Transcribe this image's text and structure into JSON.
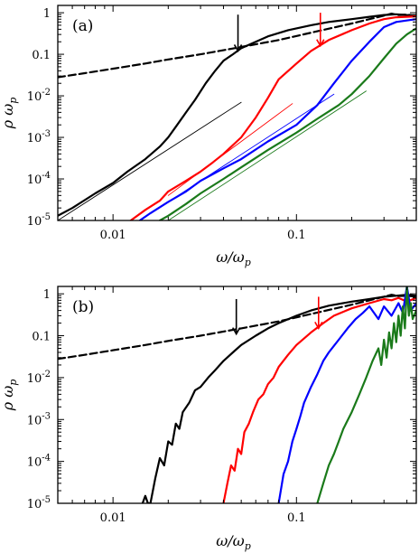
{
  "chart_data": [
    {
      "type": "line",
      "panel_label": "(a)",
      "xlabel": "ω/ω",
      "xlabel_sub": "p",
      "ylabel": "ρ ω",
      "ylabel_sub": "p",
      "xscale": "log",
      "yscale": "log",
      "xlim": [
        0.005,
        0.45
      ],
      "ylim": [
        1e-05,
        1.5
      ],
      "xticks": [
        {
          "value": 0.01,
          "label": "0.01"
        },
        {
          "value": 0.1,
          "label": "0.1"
        }
      ],
      "yticks": [
        {
          "value": 1,
          "base": "1",
          "exp": ""
        },
        {
          "value": 0.1,
          "base": "0.1",
          "exp": ""
        },
        {
          "value": 0.01,
          "base": "10",
          "exp": "-2"
        },
        {
          "value": 0.001,
          "base": "10",
          "exp": "-3"
        },
        {
          "value": 0.0001,
          "base": "10",
          "exp": "-4"
        },
        {
          "value": 1e-05,
          "base": "10",
          "exp": "-5"
        }
      ],
      "series": [
        {
          "color": "#000000",
          "dash": true,
          "width": 2.2,
          "x": [
            0.005,
            0.007,
            0.01,
            0.015,
            0.02,
            0.03,
            0.05,
            0.08,
            0.12,
            0.2,
            0.3,
            0.33,
            0.36,
            0.4,
            0.45
          ],
          "y": [
            0.028,
            0.035,
            0.045,
            0.06,
            0.075,
            0.1,
            0.15,
            0.22,
            0.33,
            0.55,
            0.85,
            0.95,
            0.88,
            0.9,
            0.85
          ]
        },
        {
          "color": "#000000",
          "dash": false,
          "width": 2.2,
          "x": [
            0.005,
            0.006,
            0.008,
            0.01,
            0.012,
            0.015,
            0.018,
            0.02,
            0.022,
            0.025,
            0.028,
            0.032,
            0.036,
            0.04,
            0.045,
            0.05,
            0.06,
            0.07,
            0.09,
            0.12,
            0.15,
            0.2,
            0.25,
            0.3,
            0.35,
            0.45
          ],
          "y": [
            1.3e-05,
            2e-05,
            4.5e-05,
            8e-05,
            0.00015,
            0.0003,
            0.0006,
            0.001,
            0.0018,
            0.004,
            0.008,
            0.02,
            0.04,
            0.07,
            0.1,
            0.14,
            0.2,
            0.27,
            0.38,
            0.5,
            0.6,
            0.7,
            0.8,
            0.88,
            0.92,
            0.85
          ]
        },
        {
          "color": "#ff0000",
          "dash": false,
          "width": 2.2,
          "x": [
            0.0125,
            0.015,
            0.018,
            0.02,
            0.025,
            0.03,
            0.035,
            0.04,
            0.05,
            0.06,
            0.07,
            0.08,
            0.1,
            0.12,
            0.15,
            0.2,
            0.25,
            0.3,
            0.35,
            0.45
          ],
          "y": [
            1e-05,
            1.8e-05,
            3e-05,
            5e-05,
            9e-05,
            0.00015,
            0.00025,
            0.0004,
            0.001,
            0.003,
            0.009,
            0.025,
            0.06,
            0.12,
            0.22,
            0.38,
            0.55,
            0.7,
            0.78,
            0.82
          ]
        },
        {
          "color": "#0000ff",
          "dash": false,
          "width": 2.2,
          "x": [
            0.014,
            0.016,
            0.02,
            0.025,
            0.03,
            0.04,
            0.05,
            0.07,
            0.1,
            0.13,
            0.16,
            0.2,
            0.25,
            0.3,
            0.35,
            0.45
          ],
          "y": [
            1e-05,
            1.5e-05,
            2.8e-05,
            5e-05,
            9e-05,
            0.00018,
            0.0003,
            0.0008,
            0.002,
            0.006,
            0.02,
            0.07,
            0.2,
            0.45,
            0.6,
            0.7
          ]
        },
        {
          "color": "#1a7a1a",
          "dash": false,
          "width": 2.2,
          "x": [
            0.018,
            0.02,
            0.025,
            0.03,
            0.04,
            0.05,
            0.07,
            0.1,
            0.13,
            0.17,
            0.2,
            0.25,
            0.3,
            0.35,
            0.4,
            0.45
          ],
          "y": [
            1e-05,
            1.3e-05,
            2.5e-05,
            4.5e-05,
            0.0001,
            0.00019,
            0.0005,
            0.0013,
            0.0028,
            0.006,
            0.011,
            0.03,
            0.08,
            0.18,
            0.3,
            0.42
          ]
        },
        {
          "color": "#000000",
          "dash": false,
          "width": 0.9,
          "x": [
            0.005,
            0.05
          ],
          "y": [
            1e-05,
            0.007
          ]
        },
        {
          "color": "#ff0000",
          "dash": false,
          "width": 0.9,
          "x": [
            0.02,
            0.095
          ],
          "y": [
            4e-05,
            0.0065
          ]
        },
        {
          "color": "#0000ff",
          "dash": false,
          "width": 0.9,
          "x": [
            0.014,
            0.16
          ],
          "y": [
            1e-05,
            0.011
          ]
        },
        {
          "color": "#1a7a1a",
          "dash": false,
          "width": 0.9,
          "x": [
            0.02,
            0.24
          ],
          "y": [
            1e-05,
            0.013
          ]
        }
      ],
      "arrows": [
        {
          "color": "#000000",
          "x": 0.048,
          "y_from": 0.9,
          "y_to": 0.12
        },
        {
          "color": "#ff0000",
          "x": 0.135,
          "y_from": 1.0,
          "y_to": 0.16
        }
      ]
    },
    {
      "type": "line",
      "panel_label": "(b)",
      "xlabel": "ω/ω",
      "xlabel_sub": "p",
      "ylabel": "ρ ω",
      "ylabel_sub": "p",
      "xscale": "log",
      "yscale": "log",
      "xlim": [
        0.005,
        0.45
      ],
      "ylim": [
        1e-05,
        1.5
      ],
      "xticks": [
        {
          "value": 0.01,
          "label": "0.01"
        },
        {
          "value": 0.1,
          "label": "0.1"
        }
      ],
      "yticks": [
        {
          "value": 1,
          "base": "1",
          "exp": ""
        },
        {
          "value": 0.1,
          "base": "0.1",
          "exp": ""
        },
        {
          "value": 0.01,
          "base": "10",
          "exp": "-2"
        },
        {
          "value": 0.001,
          "base": "10",
          "exp": "-3"
        },
        {
          "value": 0.0001,
          "base": "10",
          "exp": "-4"
        },
        {
          "value": 1e-05,
          "base": "10",
          "exp": "-5"
        }
      ],
      "series": [
        {
          "color": "#000000",
          "dash": true,
          "width": 2.2,
          "x": [
            0.005,
            0.007,
            0.01,
            0.015,
            0.02,
            0.03,
            0.05,
            0.08,
            0.12,
            0.2,
            0.3,
            0.33,
            0.36,
            0.4,
            0.45
          ],
          "y": [
            0.028,
            0.035,
            0.045,
            0.06,
            0.075,
            0.1,
            0.15,
            0.22,
            0.33,
            0.55,
            0.85,
            0.95,
            0.88,
            0.9,
            0.85
          ]
        },
        {
          "color": "#000000",
          "dash": false,
          "width": 2.2,
          "x": [
            0.0145,
            0.015,
            0.0155,
            0.016,
            0.017,
            0.018,
            0.019,
            0.02,
            0.021,
            0.022,
            0.023,
            0.024,
            0.026,
            0.028,
            0.03,
            0.033,
            0.036,
            0.04,
            0.045,
            0.05,
            0.06,
            0.07,
            0.08,
            0.1,
            0.12,
            0.15,
            0.2,
            0.25,
            0.3,
            0.35,
            0.4,
            0.45
          ],
          "y": [
            1e-05,
            1.5e-05,
            1e-05,
            1e-05,
            4e-05,
            0.00012,
            8e-05,
            0.0003,
            0.00025,
            0.0008,
            0.0006,
            0.0015,
            0.0025,
            0.005,
            0.006,
            0.01,
            0.015,
            0.025,
            0.04,
            0.06,
            0.1,
            0.15,
            0.2,
            0.3,
            0.4,
            0.52,
            0.65,
            0.75,
            0.85,
            0.9,
            0.95,
            0.9
          ]
        },
        {
          "color": "#ff0000",
          "dash": false,
          "width": 2.2,
          "x": [
            0.04,
            0.042,
            0.044,
            0.046,
            0.048,
            0.05,
            0.052,
            0.055,
            0.058,
            0.062,
            0.066,
            0.07,
            0.075,
            0.08,
            0.09,
            0.1,
            0.12,
            0.14,
            0.16,
            0.2,
            0.25,
            0.3,
            0.33,
            0.36,
            0.4,
            0.45
          ],
          "y": [
            1e-05,
            3e-05,
            8e-05,
            6e-05,
            0.0002,
            0.00015,
            0.0005,
            0.0008,
            0.0015,
            0.003,
            0.004,
            0.007,
            0.01,
            0.018,
            0.035,
            0.06,
            0.12,
            0.2,
            0.3,
            0.45,
            0.6,
            0.75,
            0.7,
            0.8,
            0.65,
            0.8
          ]
        },
        {
          "color": "#0000ff",
          "dash": false,
          "width": 2.2,
          "x": [
            0.08,
            0.085,
            0.09,
            0.095,
            0.1,
            0.105,
            0.11,
            0.12,
            0.13,
            0.14,
            0.15,
            0.17,
            0.19,
            0.21,
            0.23,
            0.25,
            0.28,
            0.3,
            0.33,
            0.36,
            0.38,
            0.4,
            0.42,
            0.45
          ],
          "y": [
            1e-05,
            5e-05,
            0.0001,
            0.0003,
            0.0006,
            0.0012,
            0.0025,
            0.006,
            0.012,
            0.025,
            0.04,
            0.08,
            0.15,
            0.25,
            0.35,
            0.5,
            0.25,
            0.5,
            0.3,
            0.6,
            0.35,
            1.5,
            0.4,
            0.6
          ]
        },
        {
          "color": "#1a7a1a",
          "dash": false,
          "width": 2.2,
          "x": [
            0.13,
            0.14,
            0.15,
            0.16,
            0.17,
            0.18,
            0.2,
            0.22,
            0.24,
            0.26,
            0.28,
            0.29,
            0.3,
            0.31,
            0.32,
            0.33,
            0.34,
            0.35,
            0.36,
            0.37,
            0.38,
            0.39,
            0.4,
            0.41,
            0.42,
            0.43,
            0.45
          ],
          "y": [
            1e-05,
            3e-05,
            8e-05,
            0.00015,
            0.0003,
            0.0006,
            0.0015,
            0.004,
            0.01,
            0.025,
            0.05,
            0.02,
            0.08,
            0.03,
            0.12,
            0.05,
            0.2,
            0.07,
            0.3,
            0.1,
            0.5,
            0.15,
            1.5,
            0.3,
            0.6,
            0.25,
            0.4
          ]
        }
      ],
      "arrows": [
        {
          "color": "#000000",
          "x": 0.047,
          "y_from": 0.75,
          "y_to": 0.11
        },
        {
          "color": "#ff0000",
          "x": 0.132,
          "y_from": 0.85,
          "y_to": 0.15
        }
      ]
    }
  ]
}
